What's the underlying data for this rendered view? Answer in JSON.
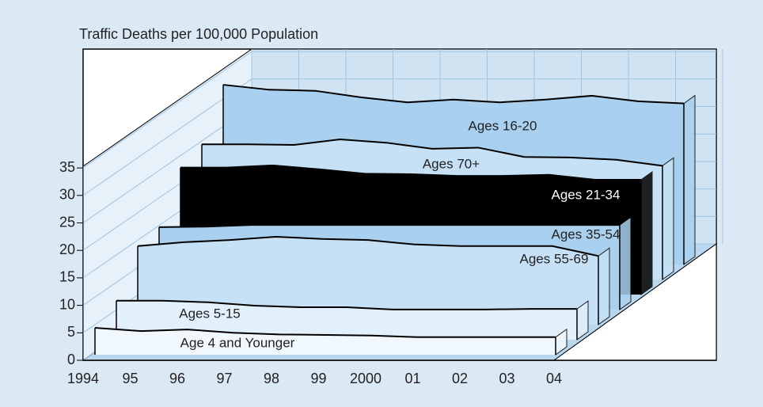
{
  "chart_data": {
    "type": "ribbon3d",
    "title": "Traffic Deaths per 100,000 Population",
    "categories": [
      "1994",
      "95",
      "96",
      "97",
      "98",
      "99",
      "2000",
      "01",
      "02",
      "03",
      "04"
    ],
    "ylim": [
      0,
      35
    ],
    "yticks": [
      0,
      5,
      10,
      15,
      20,
      25,
      30,
      35
    ],
    "grid": true,
    "series": [
      {
        "name": "Ages 16-20",
        "color": "#a9d0ee",
        "label_color": "#222222",
        "values": [
          32.7,
          31.8,
          31.6,
          30.4,
          29.5,
          30.0,
          29.5,
          30.0,
          30.7,
          29.7,
          29.3
        ]
      },
      {
        "name": "Ages 70+",
        "color": "#c6e1f5",
        "label_color": "#222222",
        "values": [
          24.6,
          24.6,
          24.5,
          25.5,
          24.9,
          23.8,
          24.0,
          22.3,
          22.2,
          21.8,
          20.7
        ]
      },
      {
        "name": "Ages 21-34",
        "color": "#000000",
        "label_color": "#ffffff",
        "values": [
          23.1,
          23.1,
          23.5,
          22.8,
          22.0,
          21.9,
          21.6,
          21.6,
          21.8,
          20.9,
          20.9
        ]
      },
      {
        "name": "Ages 35-54",
        "color": "#a9d0ee",
        "label_color": "#222222",
        "values": [
          15.0,
          15.1,
          15.4,
          15.4,
          15.4,
          15.4,
          15.4,
          15.4,
          15.4,
          15.4,
          15.4
        ]
      },
      {
        "name": "Ages 55-69",
        "color": "#c6e1f5",
        "label_color": "#222222",
        "values": [
          14.3,
          15.0,
          15.4,
          16.0,
          15.6,
          15.4,
          14.6,
          14.3,
          14.3,
          14.3,
          12.5
        ]
      },
      {
        "name": "Ages 5-15",
        "color": "#e1f0fa",
        "label_color": "#222222",
        "values": [
          7.1,
          7.1,
          6.8,
          6.2,
          5.9,
          5.9,
          5.5,
          5.5,
          5.5,
          5.6,
          5.6
        ]
      },
      {
        "name": "Age 4 and Younger",
        "color": "#f1f8fd",
        "label_color": "#222222",
        "values": [
          4.9,
          4.3,
          4.6,
          4.0,
          3.7,
          3.6,
          3.5,
          3.2,
          3.2,
          3.2,
          3.2
        ]
      }
    ]
  }
}
